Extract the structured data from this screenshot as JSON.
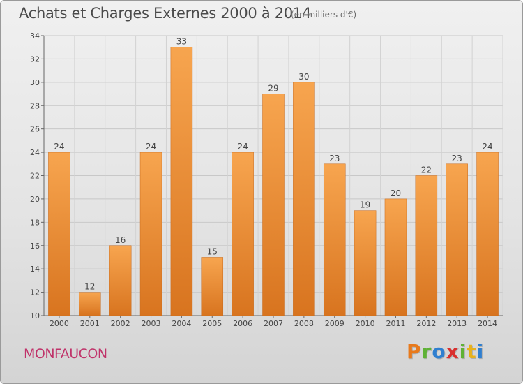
{
  "header": {
    "title": "Achats et Charges Externes 2000 à 2014",
    "subtitle": "(en milliers d'€)"
  },
  "footer": {
    "location": "MONFAUCON",
    "logo": "Proxiti",
    "logo_colors": [
      "#e87a1c",
      "#5fb236",
      "#2f7fd0",
      "#d9302f",
      "#5fb236",
      "#e8b21c",
      "#2f7fd0"
    ]
  },
  "chart_data": {
    "type": "bar",
    "title": "Achats et Charges Externes 2000 à 2014",
    "subtitle": "(en milliers d'€)",
    "xlabel": "",
    "ylabel": "",
    "categories": [
      "2000",
      "2001",
      "2002",
      "2003",
      "2004",
      "2005",
      "2006",
      "2007",
      "2008",
      "2009",
      "2010",
      "2011",
      "2012",
      "2013",
      "2014"
    ],
    "values": [
      24,
      12,
      16,
      24,
      33,
      15,
      24,
      29,
      30,
      23,
      19,
      20,
      22,
      23,
      24
    ],
    "ylim": [
      10,
      34
    ],
    "yticks": [
      10,
      12,
      14,
      16,
      18,
      20,
      22,
      24,
      26,
      28,
      30,
      32,
      34
    ],
    "grid": true,
    "legend": "none",
    "bar_color_top": "#f7a54f",
    "bar_color_bottom": "#d8741f"
  }
}
